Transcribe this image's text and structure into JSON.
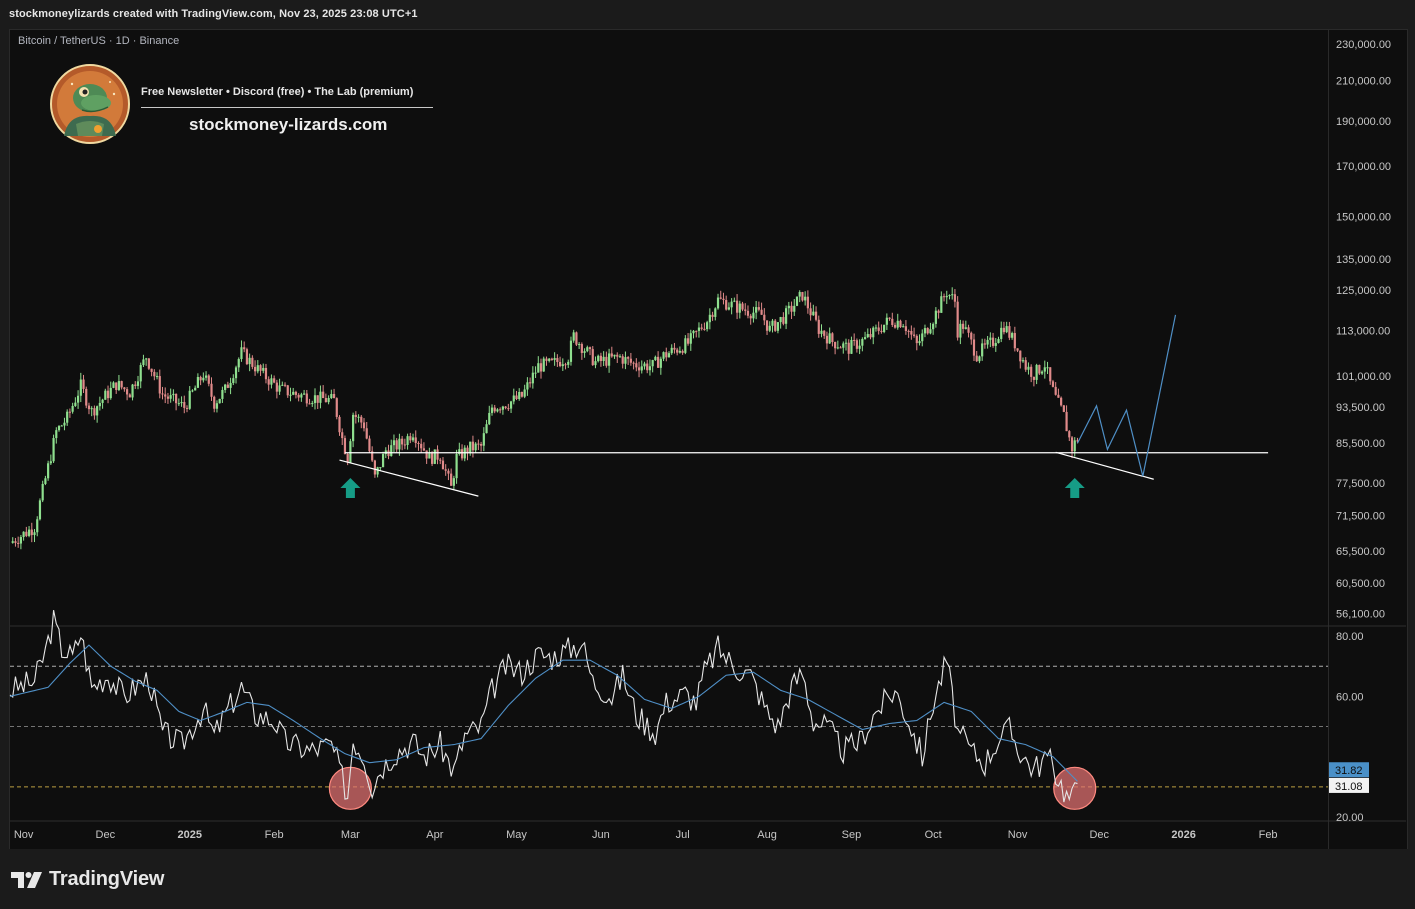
{
  "header": {
    "attribution": "stockmoneylizards created with TradingView.com, Nov 23, 2025 23:08 UTC+1"
  },
  "chart": {
    "symbol_title": "Bitcoin / TetherUS · 1D · Binance",
    "promo_line": "Free Newsletter • Discord (free) • The Lab (premium)",
    "site": "stockmoney-lizards.com"
  },
  "footer": {
    "brand": "TradingView"
  },
  "colors": {
    "background": "#0e0e0e",
    "candle_up": "#8fe08f",
    "candle_down": "#e08a8a",
    "rsi_line": "#e6e6e6",
    "rsi_ma": "#4f8fc6",
    "projection": "#4f8fc6",
    "arrow": "#169c86",
    "circle": "#e57373",
    "guide": "#d8b64a",
    "rsi_badge": "#4a90c8"
  },
  "icons": {
    "arrow": "up-arrow-icon",
    "logo": "tradingview-logo-icon",
    "avatar": "lizard-avatar-icon"
  },
  "chart_data": [
    {
      "type": "candlestick",
      "scale": "log",
      "title": "Bitcoin / TetherUS · 1D · Binance",
      "price_ticks": [
        230000,
        210000,
        190000,
        170000,
        150000,
        135000,
        125000,
        113000,
        101000,
        93500,
        85500,
        77500,
        71500,
        65500,
        60500,
        56100
      ],
      "price_tick_labels": [
        "230,000.00",
        "210,000.00",
        "190,000.00",
        "170,000.00",
        "150,000.00",
        "135,000.00",
        "125,000.00",
        "113,000.00",
        "101,000.00",
        "93,500.00",
        "85,500.00",
        "77,500.00",
        "71,500.00",
        "65,500.00",
        "60,500.00",
        "56,100.00"
      ],
      "ylim": [
        54500,
        238000
      ],
      "x_labels": [
        "Nov",
        "Dec",
        "2025",
        "Feb",
        "Mar",
        "Apr",
        "May",
        "Jun",
        "Jul",
        "Aug",
        "Sep",
        "Oct",
        "Nov",
        "Dec",
        "2026",
        "Feb"
      ],
      "x_label_dates": [
        "2024-11-01",
        "2024-12-01",
        "2025-01-01",
        "2025-02-01",
        "2025-03-01",
        "2025-04-01",
        "2025-05-01",
        "2025-06-01",
        "2025-07-01",
        "2025-08-01",
        "2025-09-01",
        "2025-10-01",
        "2025-11-01",
        "2025-12-01",
        "2026-01-01",
        "2026-02-01"
      ],
      "xlim": [
        "2024-10-27",
        "2026-02-23"
      ],
      "price_path": [
        [
          "2024-10-27",
          66800
        ],
        [
          "2024-11-05",
          69500
        ],
        [
          "2024-11-08",
          76000
        ],
        [
          "2024-11-13",
          88000
        ],
        [
          "2024-11-17",
          91000
        ],
        [
          "2024-11-22",
          98500
        ],
        [
          "2024-11-26",
          92500
        ],
        [
          "2024-12-05",
          99000
        ],
        [
          "2024-12-10",
          97000
        ],
        [
          "2024-12-16",
          106000
        ],
        [
          "2024-12-22",
          96500
        ],
        [
          "2024-12-30",
          93500
        ],
        [
          "2025-01-06",
          101500
        ],
        [
          "2025-01-10",
          94500
        ],
        [
          "2025-01-14",
          97500
        ],
        [
          "2025-01-20",
          107000
        ],
        [
          "2025-01-27",
          102000
        ],
        [
          "2025-02-03",
          97800
        ],
        [
          "2025-02-09",
          96500
        ],
        [
          "2025-02-18",
          95500
        ],
        [
          "2025-02-23",
          95000
        ],
        [
          "2025-02-26",
          86500
        ],
        [
          "2025-02-28",
          82500
        ],
        [
          "2025-03-02",
          92000
        ],
        [
          "2025-03-06",
          89500
        ],
        [
          "2025-03-10",
          78500
        ],
        [
          "2025-03-14",
          84000
        ],
        [
          "2025-03-20",
          85500
        ],
        [
          "2025-03-24",
          88000
        ],
        [
          "2025-03-30",
          82500
        ],
        [
          "2025-04-03",
          83000
        ],
        [
          "2025-04-07",
          76500
        ],
        [
          "2025-04-09",
          82500
        ],
        [
          "2025-04-14",
          84500
        ],
        [
          "2025-04-18",
          84800
        ],
        [
          "2025-04-22",
          93500
        ],
        [
          "2025-04-28",
          94500
        ],
        [
          "2025-05-03",
          96000
        ],
        [
          "2025-05-09",
          103500
        ],
        [
          "2025-05-14",
          104000
        ],
        [
          "2025-05-20",
          106000
        ],
        [
          "2025-05-22",
          111500
        ],
        [
          "2025-05-30",
          104500
        ],
        [
          "2025-06-08",
          105800
        ],
        [
          "2025-06-13",
          104000
        ],
        [
          "2025-06-20",
          103500
        ],
        [
          "2025-06-24",
          106200
        ],
        [
          "2025-07-03",
          109500
        ],
        [
          "2025-07-10",
          116000
        ],
        [
          "2025-07-14",
          122000
        ],
        [
          "2025-07-22",
          119500
        ],
        [
          "2025-07-30",
          117500
        ],
        [
          "2025-08-02",
          113300
        ],
        [
          "2025-08-08",
          117500
        ],
        [
          "2025-08-14",
          123500
        ],
        [
          "2025-08-20",
          113500
        ],
        [
          "2025-08-25",
          110000
        ],
        [
          "2025-08-31",
          108200
        ],
        [
          "2025-09-07",
          111000
        ],
        [
          "2025-09-15",
          116000
        ],
        [
          "2025-09-20",
          115500
        ],
        [
          "2025-09-25",
          109000
        ],
        [
          "2025-10-01",
          116500
        ],
        [
          "2025-10-06",
          124500
        ],
        [
          "2025-10-09",
          121500
        ],
        [
          "2025-10-10",
          113000
        ],
        [
          "2025-10-12",
          114500
        ],
        [
          "2025-10-17",
          106500
        ],
        [
          "2025-10-23",
          110000
        ],
        [
          "2025-10-27",
          114500
        ],
        [
          "2025-10-31",
          109500
        ],
        [
          "2025-11-04",
          103500
        ],
        [
          "2025-11-07",
          101500
        ],
        [
          "2025-11-11",
          104000
        ],
        [
          "2025-11-13",
          99000
        ],
        [
          "2025-11-15",
          95500
        ],
        [
          "2025-11-18",
          91500
        ],
        [
          "2025-11-20",
          86500
        ],
        [
          "2025-11-21",
          84500
        ],
        [
          "2025-11-23",
          86500
        ]
      ],
      "annotations": {
        "support_level": 83500,
        "support_range": [
          "2025-02-27",
          "2026-02-01"
        ],
        "trendline_1": [
          [
            "2025-02-25",
            82000
          ],
          [
            "2025-04-17",
            75000
          ]
        ],
        "trendline_2": [
          [
            "2025-11-15",
            83600
          ],
          [
            "2025-12-21",
            78200
          ]
        ],
        "projection": [
          [
            "2025-11-23",
            85500
          ],
          [
            "2025-11-30",
            93800
          ],
          [
            "2025-12-04",
            84200
          ],
          [
            "2025-12-11",
            92800
          ],
          [
            "2025-12-17",
            78800
          ],
          [
            "2025-12-29",
            117500
          ]
        ],
        "up_arrows": [
          "2025-03-01",
          "2025-11-22"
        ]
      }
    },
    {
      "type": "line",
      "title": "RSI",
      "y_ticks": [
        20,
        40,
        60,
        80
      ],
      "y_tick_labels": [
        "20.00",
        "",
        "60.00",
        "80.00"
      ],
      "ylim": [
        19,
        83
      ],
      "levels": [
        70,
        50,
        30
      ],
      "current_values": [
        "31.82",
        "31.08"
      ],
      "series": [
        {
          "values": [
            [
              "2024-10-27",
              62
            ],
            [
              "2024-11-05",
              65
            ],
            [
              "2024-11-09",
              75
            ],
            [
              "2024-11-12",
              85
            ],
            [
              "2024-11-15",
              76
            ],
            [
              "2024-11-19",
              73
            ],
            [
              "2024-11-22",
              81
            ],
            [
              "2024-11-26",
              63
            ],
            [
              "2024-12-02",
              67
            ],
            [
              "2024-12-08",
              60
            ],
            [
              "2024-12-13",
              64
            ],
            [
              "2024-12-17",
              66
            ],
            [
              "2024-12-22",
              48
            ],
            [
              "2024-12-29",
              44
            ],
            [
              "2025-01-06",
              56
            ],
            [
              "2025-01-10",
              47
            ],
            [
              "2025-01-14",
              54
            ],
            [
              "2025-01-20",
              63
            ],
            [
              "2025-01-25",
              54
            ],
            [
              "2025-02-01",
              52
            ],
            [
              "2025-02-05",
              45
            ],
            [
              "2025-02-14",
              42
            ],
            [
              "2025-02-22",
              44
            ],
            [
              "2025-02-25",
              36
            ],
            [
              "2025-02-28",
              27
            ],
            [
              "2025-03-02",
              46
            ],
            [
              "2025-03-06",
              40
            ],
            [
              "2025-03-09",
              30
            ],
            [
              "2025-03-12",
              36
            ],
            [
              "2025-03-17",
              41
            ],
            [
              "2025-03-24",
              45
            ],
            [
              "2025-03-28",
              40
            ],
            [
              "2025-04-03",
              44
            ],
            [
              "2025-04-08",
              35
            ],
            [
              "2025-04-12",
              47
            ],
            [
              "2025-04-18",
              50
            ],
            [
              "2025-04-22",
              62
            ],
            [
              "2025-04-27",
              70
            ],
            [
              "2025-05-03",
              68
            ],
            [
              "2025-05-09",
              74
            ],
            [
              "2025-05-14",
              73
            ],
            [
              "2025-05-21",
              76
            ],
            [
              "2025-05-25",
              78
            ],
            [
              "2025-05-29",
              65
            ],
            [
              "2025-06-05",
              60
            ],
            [
              "2025-06-09",
              67
            ],
            [
              "2025-06-14",
              54
            ],
            [
              "2025-06-21",
              48
            ],
            [
              "2025-06-25",
              58
            ],
            [
              "2025-07-02",
              61
            ],
            [
              "2025-07-06",
              58
            ],
            [
              "2025-07-09",
              68
            ],
            [
              "2025-07-14",
              76
            ],
            [
              "2025-07-20",
              70
            ],
            [
              "2025-07-26",
              67
            ],
            [
              "2025-08-01",
              55
            ],
            [
              "2025-08-05",
              50
            ],
            [
              "2025-08-10",
              63
            ],
            [
              "2025-08-14",
              68
            ],
            [
              "2025-08-18",
              52
            ],
            [
              "2025-08-23",
              50
            ],
            [
              "2025-08-29",
              42
            ],
            [
              "2025-09-04",
              45
            ],
            [
              "2025-09-10",
              55
            ],
            [
              "2025-09-17",
              62
            ],
            [
              "2025-09-22",
              52
            ],
            [
              "2025-09-27",
              40
            ],
            [
              "2025-10-01",
              58
            ],
            [
              "2025-10-06",
              72
            ],
            [
              "2025-10-10",
              48
            ],
            [
              "2025-10-15",
              42
            ],
            [
              "2025-10-20",
              38
            ],
            [
              "2025-10-25",
              46
            ],
            [
              "2025-10-29",
              49
            ],
            [
              "2025-11-03",
              40
            ],
            [
              "2025-11-07",
              36
            ],
            [
              "2025-11-12",
              40
            ],
            [
              "2025-11-16",
              33
            ],
            [
              "2025-11-19",
              27
            ],
            [
              "2025-11-21",
              26
            ],
            [
              "2025-11-23",
              31.08
            ]
          ]
        },
        {
          "values": [
            [
              "2024-10-27",
              60
            ],
            [
              "2024-11-10",
              63
            ],
            [
              "2024-11-18",
              71
            ],
            [
              "2024-11-25",
              77
            ],
            [
              "2024-12-03",
              70
            ],
            [
              "2024-12-12",
              65
            ],
            [
              "2024-12-20",
              62
            ],
            [
              "2024-12-28",
              55
            ],
            [
              "2025-01-05",
              52
            ],
            [
              "2025-01-14",
              55
            ],
            [
              "2025-01-22",
              58
            ],
            [
              "2025-01-30",
              57
            ],
            [
              "2025-02-08",
              52
            ],
            [
              "2025-02-18",
              46
            ],
            [
              "2025-02-27",
              41
            ],
            [
              "2025-03-08",
              38
            ],
            [
              "2025-03-18",
              39
            ],
            [
              "2025-03-28",
              43
            ],
            [
              "2025-04-08",
              44
            ],
            [
              "2025-04-18",
              46
            ],
            [
              "2025-04-28",
              57
            ],
            [
              "2025-05-08",
              66
            ],
            [
              "2025-05-18",
              72
            ],
            [
              "2025-05-28",
              72
            ],
            [
              "2025-06-07",
              67
            ],
            [
              "2025-06-17",
              59
            ],
            [
              "2025-06-27",
              56
            ],
            [
              "2025-07-07",
              60
            ],
            [
              "2025-07-17",
              67
            ],
            [
              "2025-07-27",
              68
            ],
            [
              "2025-08-06",
              62
            ],
            [
              "2025-08-16",
              59
            ],
            [
              "2025-08-26",
              54
            ],
            [
              "2025-09-05",
              49
            ],
            [
              "2025-09-15",
              51
            ],
            [
              "2025-09-25",
              52
            ],
            [
              "2025-10-05",
              58
            ],
            [
              "2025-10-15",
              55
            ],
            [
              "2025-10-25",
              46
            ],
            [
              "2025-11-04",
              44
            ],
            [
              "2025-11-14",
              40
            ],
            [
              "2025-11-23",
              31.82
            ]
          ]
        }
      ]
    }
  ]
}
